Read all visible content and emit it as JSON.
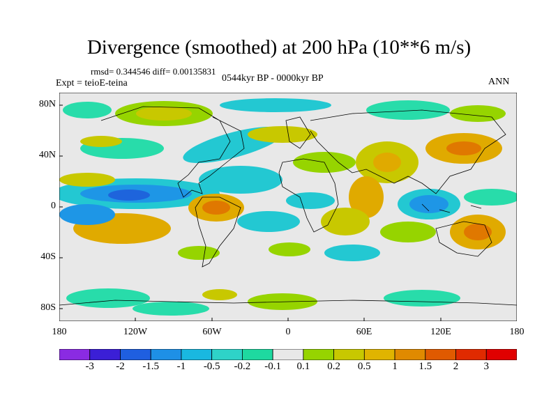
{
  "title": "Divergence (smoothed) at 200 hPa (10**6 m/s)",
  "stats": "rmsd= 0.344546 diff= 0.00135831",
  "experiment": "Expt = teioE-teina",
  "period": "0544kyr BP - 0000kyr BP",
  "season": "ANN",
  "lat_ticks": [
    "80N",
    "40N",
    "0",
    "40S",
    "80S"
  ],
  "lon_ticks": [
    "180",
    "120W",
    "60W",
    "0",
    "60E",
    "120E",
    "180"
  ],
  "colorbar": {
    "labels": [
      "-3",
      "-2",
      "-1.5",
      "-1",
      "-0.5",
      "-0.2",
      "-0.1",
      "0.1",
      "0.2",
      "0.5",
      "1",
      "1.5",
      "2",
      "3"
    ],
    "colors": [
      "#8a2be2",
      "#3b1fd6",
      "#1f5fe0",
      "#1e90e6",
      "#19b8e0",
      "#2ed3c8",
      "#1ed9a0",
      "#e8e8e8",
      "#96d400",
      "#c8c800",
      "#e0b400",
      "#e08a00",
      "#e05a00",
      "#e02a00",
      "#e00000"
    ]
  },
  "palette": {
    "neg_strong": "#1e64dc",
    "neg_mid": "#1e96e6",
    "neg_weak": "#23c8d2",
    "neg_faint": "#28dcaa",
    "neutral": "#e8e8e8",
    "pos_faint": "#96d400",
    "pos_weak": "#c8c800",
    "pos_mid": "#e0aa00",
    "pos_strong": "#e07800"
  }
}
